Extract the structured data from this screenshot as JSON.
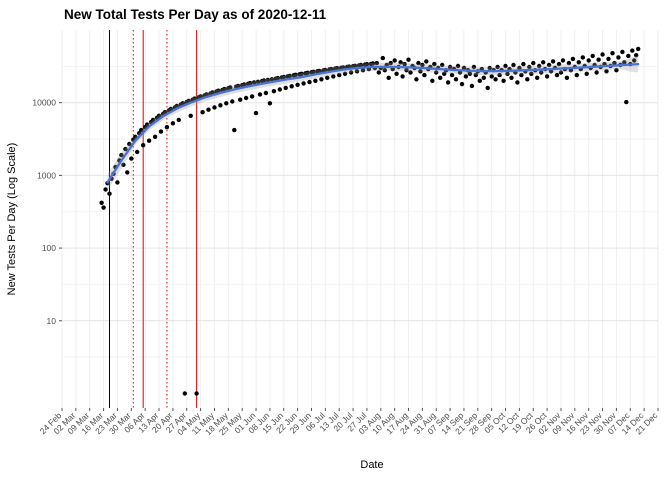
{
  "chart_data": {
    "type": "scatter",
    "title": "New Total Tests Per Day as of 2020-12-11",
    "xlabel": "Date",
    "ylabel": "New Tests Per Day (Log Scale)",
    "y_scale": "log10",
    "ylim": [
      1,
      100000
    ],
    "y_tick_values": [
      10,
      100,
      1000,
      10000
    ],
    "y_tick_labels": [
      "10",
      "100",
      "1000",
      "10000"
    ],
    "x_range": [
      "2020-02-24",
      "2020-12-21"
    ],
    "x_tick_labels": [
      "24 Feb",
      "02 Mar",
      "09 Mar",
      "16 Mar",
      "23 Mar",
      "30 Mar",
      "06 Apr",
      "13 Apr",
      "20 Apr",
      "27 Apr",
      "04 May",
      "11 May",
      "18 May",
      "25 May",
      "01 Jun",
      "08 Jun",
      "15 Jun",
      "22 Jun",
      "29 Jun",
      "06 Jul",
      "13 Jul",
      "20 Jul",
      "27 Jul",
      "03 Aug",
      "10 Aug",
      "17 Aug",
      "24 Aug",
      "31 Aug",
      "07 Sep",
      "14 Sep",
      "21 Sep",
      "28 Sep",
      "05 Oct",
      "12 Oct",
      "19 Oct",
      "26 Oct",
      "02 Nov",
      "09 Nov",
      "16 Nov",
      "23 Nov",
      "30 Nov",
      "07 Dec",
      "14 Dec",
      "21 Dec"
    ],
    "grid": true,
    "legend": "none",
    "points": {
      "start_date": "2020-03-15",
      "daily_values": [
        420,
        360,
        640,
        780,
        560,
        900,
        1050,
        1300,
        800,
        1600,
        1900,
        1400,
        2300,
        1100,
        2700,
        1700,
        3100,
        3400,
        2100,
        3800,
        4200,
        2600,
        4600,
        5000,
        3000,
        5400,
        5800,
        3400,
        6200,
        6600,
        4000,
        7000,
        7400,
        4600,
        7800,
        8200,
        5200,
        8600,
        9000,
        5800,
        9400,
        9800,
        1,
        10200,
        10600,
        6600,
        11000,
        11400,
        1,
        11800,
        12200,
        7400,
        12600,
        13000,
        8000,
        13400,
        13800,
        8600,
        14200,
        14600,
        9200,
        15000,
        15400,
        9800,
        15800,
        16200,
        10400,
        4200,
        16600,
        17000,
        11000,
        17400,
        17800,
        11600,
        18200,
        18600,
        12200,
        19000,
        7200,
        19400,
        13000,
        19800,
        20200,
        13600,
        20600,
        9800,
        21000,
        14400,
        21400,
        21800,
        15200,
        22200,
        22600,
        16000,
        23000,
        23400,
        16800,
        23800,
        24200,
        17600,
        24600,
        25000,
        18400,
        25400,
        25800,
        19200,
        26200,
        26600,
        20000,
        27000,
        27400,
        21000,
        27800,
        28200,
        22000,
        28600,
        29000,
        23000,
        29400,
        29800,
        24000,
        30200,
        30600,
        25000,
        31000,
        31400,
        26000,
        31800,
        32200,
        27000,
        32600,
        33000,
        28000,
        33400,
        33800,
        29000,
        34200,
        34600,
        30000,
        35000,
        26000,
        30000,
        41000,
        28000,
        33000,
        22000,
        35000,
        29000,
        38000,
        25000,
        31000,
        36000,
        23000,
        34000,
        28000,
        39000,
        26000,
        32000,
        30000,
        21000,
        35000,
        27000,
        33000,
        24000,
        37000,
        29000,
        31000,
        20000,
        34000,
        26000,
        30000,
        22000,
        33000,
        25000,
        28000,
        19000,
        31000,
        24000,
        29000,
        21000,
        32000,
        26000,
        18000,
        30000,
        23000,
        28000,
        25000,
        17000,
        31000,
        24000,
        27000,
        20000,
        29000,
        22000,
        26000,
        16000,
        30000,
        23000,
        28000,
        21000,
        31000,
        24000,
        28000,
        20000,
        32000,
        25000,
        29000,
        22000,
        33000,
        26000,
        19000,
        30000,
        24000,
        34000,
        27000,
        21000,
        31000,
        25000,
        35000,
        28000,
        22000,
        32000,
        26000,
        36000,
        29000,
        23000,
        33000,
        27000,
        37000,
        30000,
        24000,
        34000,
        26000,
        38000,
        29000,
        22000,
        35000,
        28000,
        40000,
        31000,
        24000,
        36000,
        29000,
        42000,
        32000,
        25000,
        38000,
        30000,
        44000,
        33000,
        26000,
        39000,
        31000,
        46000,
        34000,
        27000,
        40000,
        32000,
        48000,
        35000,
        28000,
        42000,
        33000,
        50000,
        36000,
        10200,
        44000,
        34000,
        52000,
        38000,
        45000,
        55000
      ]
    },
    "smooth_line": {
      "dates": [
        "2020-03-18",
        "2020-03-25",
        "2020-04-01",
        "2020-04-08",
        "2020-04-15",
        "2020-04-22",
        "2020-04-29",
        "2020-05-06",
        "2020-05-13",
        "2020-05-20",
        "2020-05-27",
        "2020-06-03",
        "2020-06-10",
        "2020-06-17",
        "2020-06-24",
        "2020-07-01",
        "2020-07-08",
        "2020-07-15",
        "2020-07-22",
        "2020-07-29",
        "2020-08-05",
        "2020-08-12",
        "2020-08-19",
        "2020-08-26",
        "2020-09-02",
        "2020-09-09",
        "2020-09-16",
        "2020-09-23",
        "2020-09-30",
        "2020-10-07",
        "2020-10-14",
        "2020-10-21",
        "2020-10-28",
        "2020-11-04",
        "2020-11-11",
        "2020-11-18",
        "2020-11-25",
        "2020-12-02",
        "2020-12-09",
        "2020-12-11"
      ],
      "values": [
        800,
        1600,
        3000,
        4700,
        6500,
        8300,
        10000,
        11800,
        13400,
        15000,
        16500,
        18000,
        19500,
        21000,
        22500,
        24500,
        26500,
        28500,
        30000,
        31000,
        31200,
        31000,
        30500,
        29800,
        29000,
        28200,
        27600,
        27200,
        27200,
        27500,
        27900,
        28400,
        29000,
        29700,
        30400,
        31200,
        32000,
        32800,
        33600,
        34000
      ]
    },
    "reference_lines": [
      {
        "date": "2020-03-19",
        "color": "#000000",
        "style": "solid"
      },
      {
        "date": "2020-03-31",
        "color": "#e00000",
        "style": "dotted"
      },
      {
        "date": "2020-04-05",
        "color": "#e00000",
        "style": "solid"
      },
      {
        "date": "2020-04-17",
        "color": "#e00000",
        "style": "dotted"
      },
      {
        "date": "2020-05-02",
        "color": "#e00000",
        "style": "solid"
      }
    ],
    "colors": {
      "point": "#000000",
      "smooth": "#4a73d4",
      "ribbon": "#999999",
      "grid_major": "#e4e4e4",
      "grid_minor": "#f2f2f2",
      "grid_vertical": "#efefef",
      "tick_text": "#4d4d4d",
      "tick_mark": "#555555"
    }
  }
}
